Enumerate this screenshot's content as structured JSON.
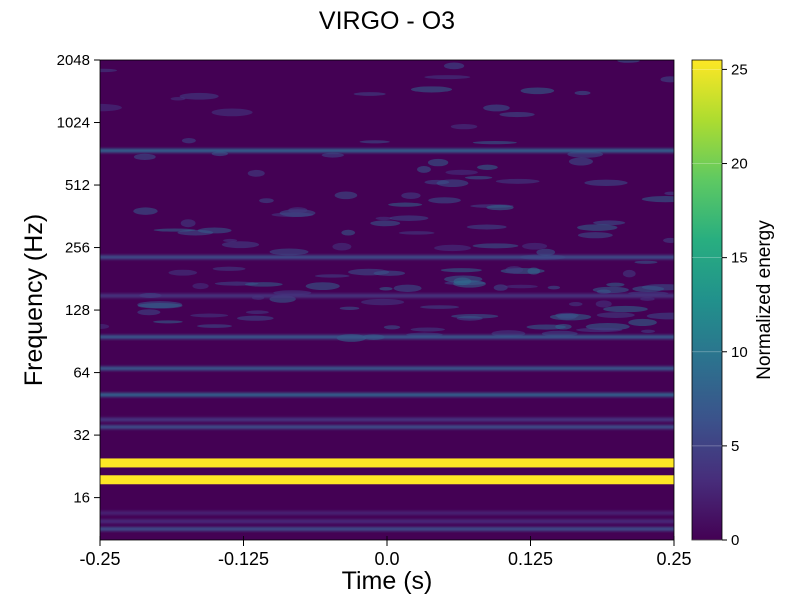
{
  "chart_data": {
    "type": "heatmap",
    "title": "VIRGO - O3",
    "xlabel": "Time (s)",
    "ylabel": "Frequency (Hz)",
    "xlim": [
      -0.25,
      0.25
    ],
    "ylim": [
      10,
      2048
    ],
    "yscale": "log2",
    "x_ticks": [
      {
        "value": -0.25,
        "label": "-0.25"
      },
      {
        "value": -0.125,
        "label": "-0.125"
      },
      {
        "value": 0.0,
        "label": "0.0"
      },
      {
        "value": 0.125,
        "label": "0.125"
      },
      {
        "value": 0.25,
        "label": "0.25"
      }
    ],
    "y_ticks": [
      {
        "value": 16,
        "label": "16"
      },
      {
        "value": 32,
        "label": "32"
      },
      {
        "value": 64,
        "label": "64"
      },
      {
        "value": 128,
        "label": "128"
      },
      {
        "value": 256,
        "label": "256"
      },
      {
        "value": 512,
        "label": "512"
      },
      {
        "value": 1024,
        "label": "1024"
      },
      {
        "value": 2048,
        "label": "2048"
      }
    ],
    "colorbar": {
      "label": "Normalized energy",
      "colormap": "viridis",
      "range": [
        0,
        25.5
      ],
      "ticks": [
        {
          "value": 0,
          "label": "0"
        },
        {
          "value": 5,
          "label": "5"
        },
        {
          "value": 10,
          "label": "10"
        },
        {
          "value": 15,
          "label": "15"
        },
        {
          "value": 20,
          "label": "20"
        },
        {
          "value": 25,
          "label": "25"
        }
      ]
    },
    "bands": [
      {
        "freq": 11.3,
        "energy": 6
      },
      {
        "freq": 12.3,
        "energy": 3
      },
      {
        "freq": 13.5,
        "energy": 2.5
      },
      {
        "freq": 19.5,
        "energy": 25.5
      },
      {
        "freq": 23.5,
        "energy": 25.5
      },
      {
        "freq": 35,
        "energy": 6
      },
      {
        "freq": 38,
        "energy": 4
      },
      {
        "freq": 50,
        "energy": 8
      },
      {
        "freq": 67,
        "energy": 7
      },
      {
        "freq": 95,
        "energy": 7
      },
      {
        "freq": 150,
        "energy": 4
      },
      {
        "freq": 230,
        "energy": 6
      },
      {
        "freq": 750,
        "energy": 8
      }
    ]
  }
}
